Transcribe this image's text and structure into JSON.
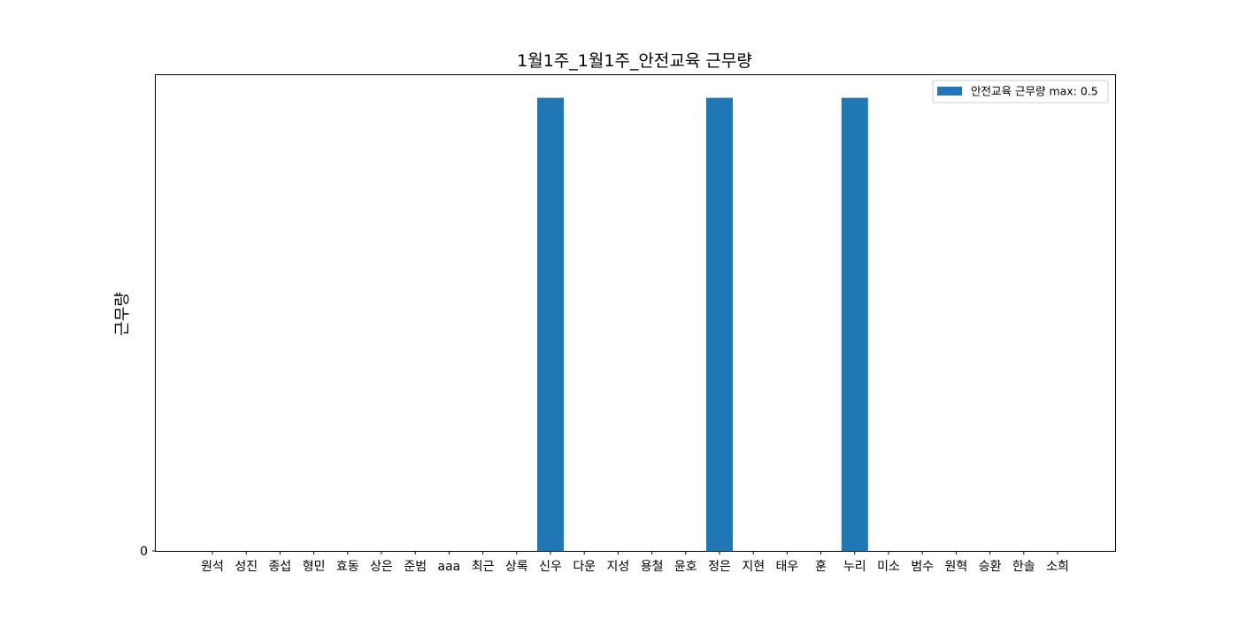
{
  "chart_data": {
    "type": "bar",
    "title": "1월1주_1월1주_안전교육 근무량",
    "xlabel": "",
    "ylabel": "근무량",
    "categories": [
      "원석",
      "성진",
      "종섭",
      "형민",
      "효동",
      "상은",
      "준범",
      "aaa",
      "최근",
      "상록",
      "신우",
      "다운",
      "지성",
      "용철",
      "윤호",
      "정은",
      "지현",
      "태우",
      "훈",
      "누리",
      "미소",
      "범수",
      "원혁",
      "승환",
      "한솔",
      "소희"
    ],
    "series": [
      {
        "name": "안전교육 근무량 max: 0.5",
        "color": "#1f77b4",
        "values": [
          0,
          0,
          0,
          0,
          0,
          0,
          0,
          0,
          0,
          0,
          0.5,
          0,
          0,
          0,
          0,
          0.5,
          0,
          0,
          0,
          0.5,
          0,
          0,
          0,
          0,
          0,
          0
        ]
      }
    ],
    "yticks": [
      0
    ],
    "ytick_labels": [
      "0"
    ],
    "ylim": [
      0,
      0.525
    ],
    "grid": false,
    "legend_position": "top-right"
  }
}
